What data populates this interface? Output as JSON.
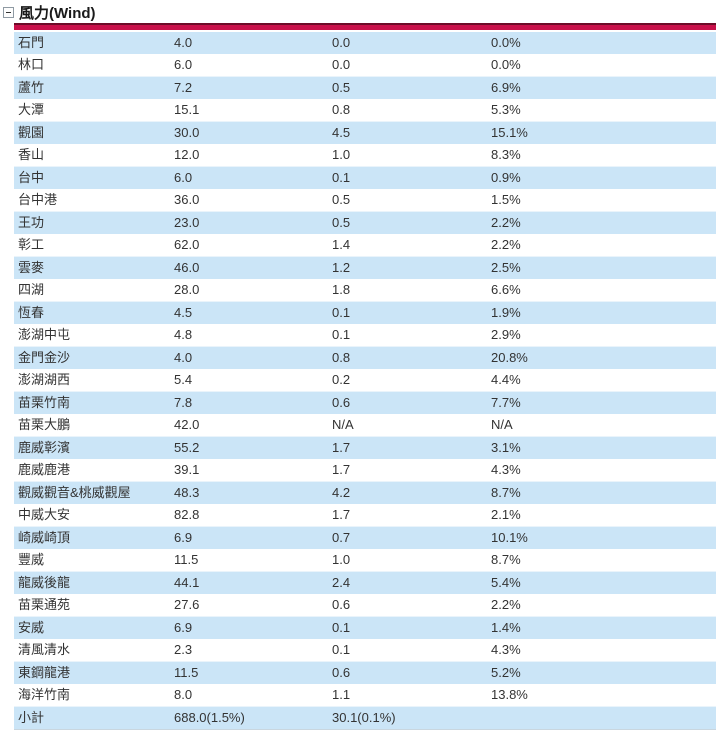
{
  "header": {
    "collapse_icon": "minus-square-icon",
    "title": "風力(Wind)"
  },
  "colors": {
    "accent_bar": "#c8104a",
    "accent_bar_top": "#6d0b28",
    "row_stripe": "#cbe5f7",
    "text": "#333333"
  },
  "table": {
    "rows": [
      {
        "name": "石門",
        "capacity": "4.0",
        "generation": "0.0",
        "percent": "0.0%"
      },
      {
        "name": "林口",
        "capacity": "6.0",
        "generation": "0.0",
        "percent": "0.0%"
      },
      {
        "name": "蘆竹",
        "capacity": "7.2",
        "generation": "0.5",
        "percent": "6.9%"
      },
      {
        "name": "大潭",
        "capacity": "15.1",
        "generation": "0.8",
        "percent": "5.3%"
      },
      {
        "name": "觀園",
        "capacity": "30.0",
        "generation": "4.5",
        "percent": "15.1%"
      },
      {
        "name": "香山",
        "capacity": "12.0",
        "generation": "1.0",
        "percent": "8.3%"
      },
      {
        "name": "台中",
        "capacity": "6.0",
        "generation": "0.1",
        "percent": "0.9%"
      },
      {
        "name": "台中港",
        "capacity": "36.0",
        "generation": "0.5",
        "percent": "1.5%"
      },
      {
        "name": "王功",
        "capacity": "23.0",
        "generation": "0.5",
        "percent": "2.2%"
      },
      {
        "name": "彰工",
        "capacity": "62.0",
        "generation": "1.4",
        "percent": "2.2%"
      },
      {
        "name": "雲麥",
        "capacity": "46.0",
        "generation": "1.2",
        "percent": "2.5%"
      },
      {
        "name": "四湖",
        "capacity": "28.0",
        "generation": "1.8",
        "percent": "6.6%"
      },
      {
        "name": "恆春",
        "capacity": "4.5",
        "generation": "0.1",
        "percent": "1.9%"
      },
      {
        "name": "澎湖中屯",
        "capacity": "4.8",
        "generation": "0.1",
        "percent": "2.9%"
      },
      {
        "name": "金門金沙",
        "capacity": "4.0",
        "generation": "0.8",
        "percent": "20.8%"
      },
      {
        "name": "澎湖湖西",
        "capacity": "5.4",
        "generation": "0.2",
        "percent": "4.4%"
      },
      {
        "name": "苗栗竹南",
        "capacity": "7.8",
        "generation": "0.6",
        "percent": "7.7%"
      },
      {
        "name": "苗栗大鵬",
        "capacity": "42.0",
        "generation": "N/A",
        "percent": "N/A"
      },
      {
        "name": "鹿威彰濱",
        "capacity": "55.2",
        "generation": "1.7",
        "percent": "3.1%"
      },
      {
        "name": "鹿威鹿港",
        "capacity": "39.1",
        "generation": "1.7",
        "percent": "4.3%"
      },
      {
        "name": "觀威觀音&桃威觀屋",
        "capacity": "48.3",
        "generation": "4.2",
        "percent": "8.7%"
      },
      {
        "name": "中威大安",
        "capacity": "82.8",
        "generation": "1.7",
        "percent": "2.1%"
      },
      {
        "name": "崎威崎頂",
        "capacity": "6.9",
        "generation": "0.7",
        "percent": "10.1%"
      },
      {
        "name": "豐威",
        "capacity": "11.5",
        "generation": "1.0",
        "percent": "8.7%"
      },
      {
        "name": "龍威後龍",
        "capacity": "44.1",
        "generation": "2.4",
        "percent": "5.4%"
      },
      {
        "name": "苗栗通苑",
        "capacity": "27.6",
        "generation": "0.6",
        "percent": "2.2%"
      },
      {
        "name": "安威",
        "capacity": "6.9",
        "generation": "0.1",
        "percent": "1.4%"
      },
      {
        "name": "清風清水",
        "capacity": "2.3",
        "generation": "0.1",
        "percent": "4.3%"
      },
      {
        "name": "東鋼龍港",
        "capacity": "11.5",
        "generation": "0.6",
        "percent": "5.2%"
      },
      {
        "name": "海洋竹南",
        "capacity": "8.0",
        "generation": "1.1",
        "percent": "13.8%"
      }
    ],
    "footer_row": {
      "name": "小計",
      "capacity": "688.0(1.5%)",
      "generation": "30.1(0.1%)",
      "percent": ""
    }
  }
}
